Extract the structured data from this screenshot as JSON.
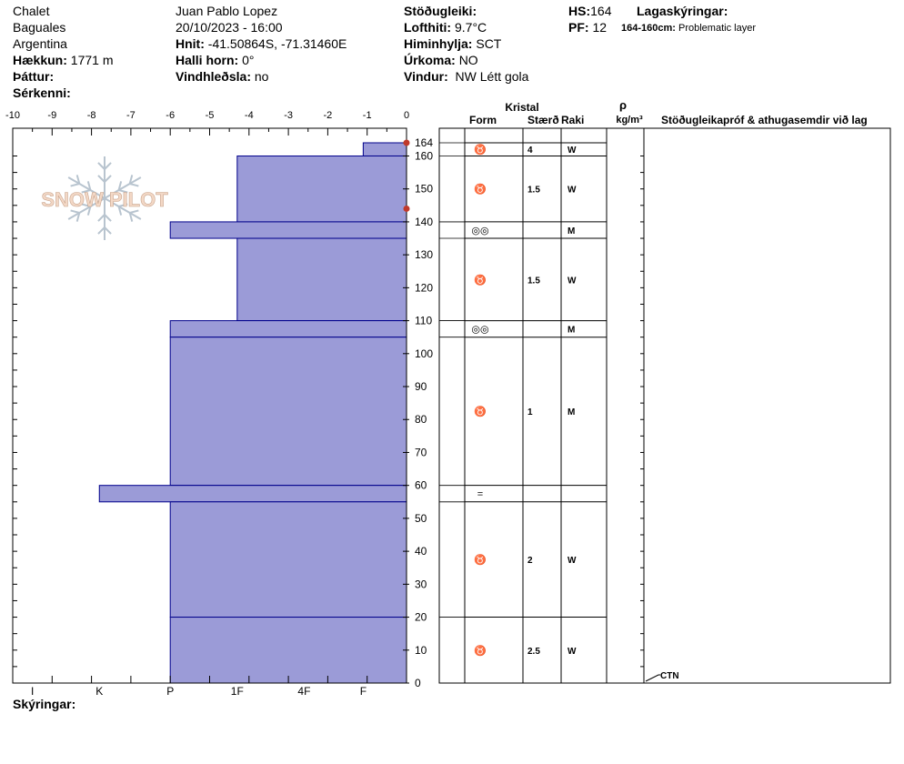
{
  "header": {
    "location": "Chalet",
    "site": "Baguales",
    "country": "Argentina",
    "elevation_label": "Hækkun:",
    "elevation_value": "1771 m",
    "aspect_label": "Þáttur:",
    "features_label": "Sérkenni:",
    "observer": "Juan Pablo  Lopez",
    "datetime": "20/10/2023 - 16:00",
    "coords_label": "Hnit:",
    "coords_value": "-41.50864S, -71.31460E",
    "slope_label": "Halli horn:",
    "slope_value": "0°",
    "wind_loading_label": "Vindhleðsla:",
    "wind_loading_value": "no",
    "stability_label": "Stöðugleiki:",
    "air_temp_label": "Lofthiti:",
    "air_temp_value": "9.7°C",
    "sky_label": "Himinhylja:",
    "sky_value": "SCT",
    "precip_label": "Úrkoma:",
    "precip_value": "NO",
    "wind_label": "Vindur:",
    "wind_value": "NW Létt gola",
    "hs_label": "HS:",
    "hs_value": "164",
    "pf_label": "PF:",
    "pf_value": "12",
    "layer_notes_label": "Lagaskýringar:",
    "layer_note_range": "164-160cm:",
    "layer_note_text": "Problematic layer",
    "legend_label": "Skýringar:"
  },
  "logo_text": "SNOW PILOT",
  "colors": {
    "fill": "#9b9bd7",
    "edge": "#00008b",
    "marker": "#c0392b",
    "grid": "#000000"
  },
  "chart_data": {
    "type": "bar",
    "orientation": "horizontal-step",
    "temp_axis": {
      "min": -10,
      "max": 0,
      "ticks": [
        "-10",
        "-9",
        "-8",
        "-7",
        "-6",
        "-5",
        "-4",
        "-3",
        "-2",
        "-1",
        "0"
      ]
    },
    "hardness_ticks": [
      "I",
      "K",
      "P",
      "1F",
      "4F",
      "F"
    ],
    "hardness_positions": [
      -9.5,
      -7.8,
      -6,
      -4.3,
      -2.6,
      -1.1
    ],
    "height_axis": {
      "min": 0,
      "max": 164,
      "ticks": [
        "164",
        "160",
        "150",
        "140",
        "130",
        "120",
        "110",
        "100",
        "90",
        "80",
        "70",
        "60",
        "50",
        "40",
        "30",
        "20",
        "10",
        "0"
      ],
      "tick_values": [
        164,
        160,
        150,
        140,
        130,
        120,
        110,
        100,
        90,
        80,
        70,
        60,
        50,
        40,
        30,
        20,
        10,
        0
      ]
    },
    "layers": [
      {
        "top": 164,
        "bottom": 160,
        "hardness": -1.1,
        "form": "♉",
        "size": "4",
        "moisture": "W"
      },
      {
        "top": 160,
        "bottom": 140,
        "hardness": -4.3,
        "form": "♉",
        "size": "1.5",
        "moisture": "W"
      },
      {
        "top": 140,
        "bottom": 135,
        "hardness": -6,
        "form": "◎◎",
        "size": "",
        "moisture": "M"
      },
      {
        "top": 135,
        "bottom": 110,
        "hardness": -4.3,
        "form": "♉",
        "size": "1.5",
        "moisture": "W"
      },
      {
        "top": 110,
        "bottom": 105,
        "hardness": -6,
        "form": "◎◎",
        "size": "",
        "moisture": "M"
      },
      {
        "top": 105,
        "bottom": 60,
        "hardness": -6,
        "form": "♉",
        "size": "1",
        "moisture": "M"
      },
      {
        "top": 60,
        "bottom": 55,
        "hardness": -7.8,
        "form": "=",
        "size": "",
        "moisture": ""
      },
      {
        "top": 55,
        "bottom": 20,
        "hardness": -6,
        "form": "♉",
        "size": "2",
        "moisture": "W"
      },
      {
        "top": 20,
        "bottom": 0,
        "hardness": -6,
        "form": "♉",
        "size": "2.5",
        "moisture": "W"
      }
    ],
    "temp_markers": [
      {
        "height": 164,
        "temp": 0
      },
      {
        "height": 144,
        "temp": 0
      }
    ],
    "table_headers": {
      "crystal": "Kristal",
      "form": "Form",
      "size": "Stærð",
      "moisture": "Raki",
      "density_symbol": "ρ",
      "density_unit": "kg/m³",
      "comments": "Stöðugleikapróf & athugasemdir við lag"
    },
    "test_result": {
      "label": "CTN",
      "height": 0
    }
  }
}
